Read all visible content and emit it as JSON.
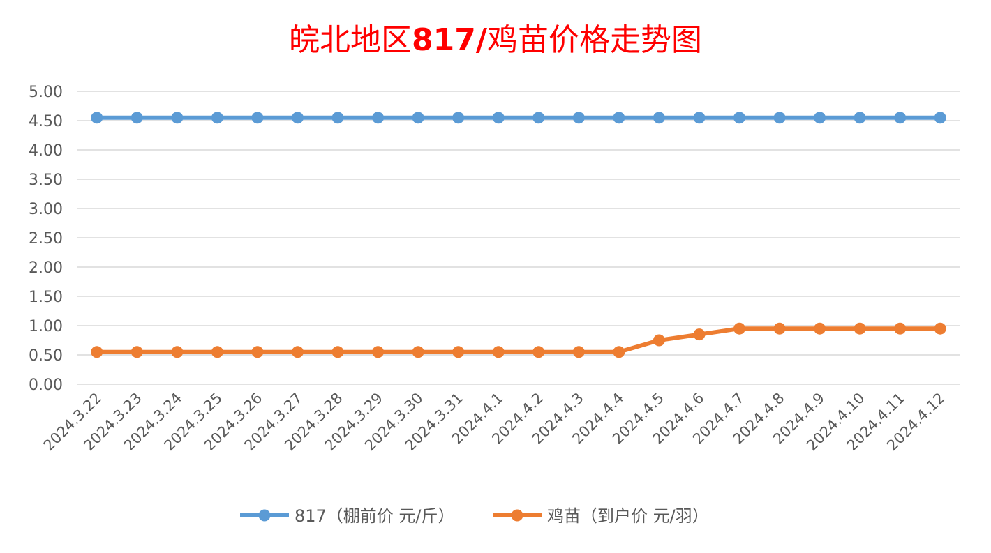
{
  "chart_data": {
    "type": "line",
    "title": "皖北地区817/鸡苗价格走势图",
    "categories": [
      "2024.3.22",
      "2024.3.23",
      "2024.3.24",
      "2024.3.25",
      "2024.3.26",
      "2024.3.27",
      "2024.3.28",
      "2024.3.29",
      "2024.3.30",
      "2024.3.31",
      "2024.4.1",
      "2024.4.2",
      "2024.4.3",
      "2024.4.4",
      "2024.4.5",
      "2024.4.6",
      "2024.4.7",
      "2024.4.8",
      "2024.4.9",
      "2024.4.10",
      "2024.4.11",
      "2024.4.12"
    ],
    "series": [
      {
        "name": "817（棚前价 元/斤）",
        "color": "#5b9bd5",
        "values": [
          4.55,
          4.55,
          4.55,
          4.55,
          4.55,
          4.55,
          4.55,
          4.55,
          4.55,
          4.55,
          4.55,
          4.55,
          4.55,
          4.55,
          4.55,
          4.55,
          4.55,
          4.55,
          4.55,
          4.55,
          4.55,
          4.55
        ]
      },
      {
        "name": "鸡苗（到户价 元/羽）",
        "color": "#ed7d31",
        "values": [
          0.55,
          0.55,
          0.55,
          0.55,
          0.55,
          0.55,
          0.55,
          0.55,
          0.55,
          0.55,
          0.55,
          0.55,
          0.55,
          0.55,
          0.75,
          0.85,
          0.95,
          0.95,
          0.95,
          0.95,
          0.95,
          0.95
        ]
      }
    ],
    "ylim": [
      0,
      5
    ],
    "yticks": [
      "0.00",
      "0.50",
      "1.00",
      "1.50",
      "2.00",
      "2.50",
      "3.00",
      "3.50",
      "4.00",
      "4.50",
      "5.00"
    ],
    "grid": true,
    "legend_position": "bottom"
  }
}
